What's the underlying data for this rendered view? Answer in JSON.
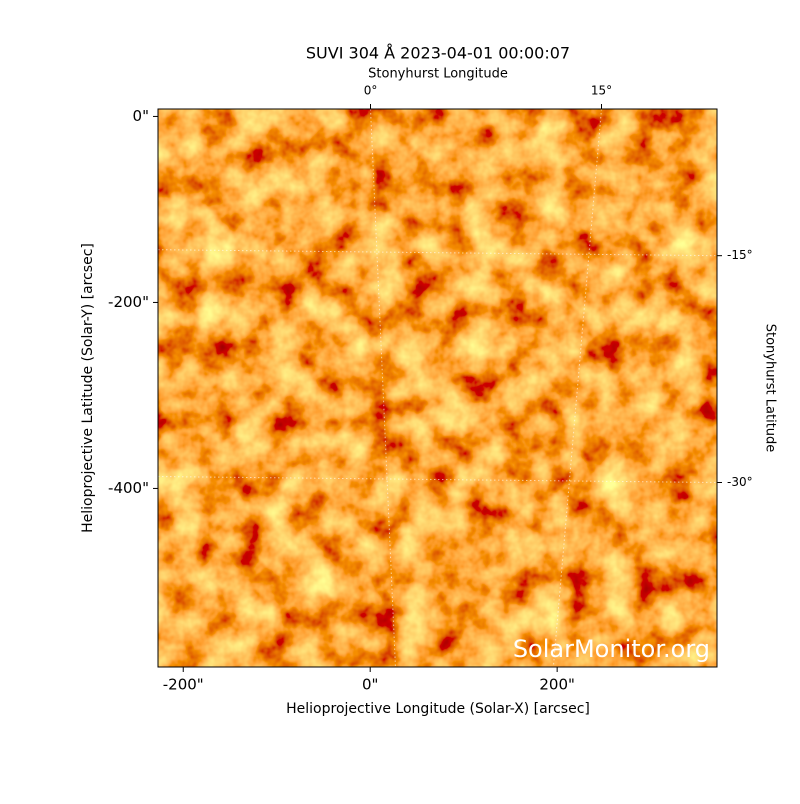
{
  "chart_data": {
    "type": "image",
    "title": "SUVI 304 Å 2023-04-01 00:00:07",
    "x_label": "Helioprojective Longitude (Solar-X) [arcsec]",
    "y_label": "Helioprojective Latitude (Solar-Y) [arcsec]",
    "x2_label": "Stonyhurst Longitude",
    "y2_label": "Stonyhurst Latitude",
    "watermark": "SolarMonitor.org",
    "xlim": [
      -227,
      371
    ],
    "ylim": [
      -592,
      8
    ],
    "xticks": [
      {
        "value": -200,
        "label": "-200\""
      },
      {
        "value": 0,
        "label": "0\""
      },
      {
        "value": 200,
        "label": "200\""
      }
    ],
    "yticks": [
      {
        "value": 0,
        "label": "0\""
      },
      {
        "value": -200,
        "label": "-200\""
      },
      {
        "value": -400,
        "label": "-400\""
      }
    ],
    "x2lim": [
      -13.8,
      22.5
    ],
    "x2ticks": [
      {
        "value": 0,
        "label": "0°"
      },
      {
        "value": 15,
        "label": "15°"
      }
    ],
    "y2lim": [
      -5.3,
      -42.2
    ],
    "y2ticks": [
      {
        "value": -15,
        "label": "-15°"
      },
      {
        "value": -30,
        "label": "-30°"
      }
    ],
    "grid": true
  }
}
